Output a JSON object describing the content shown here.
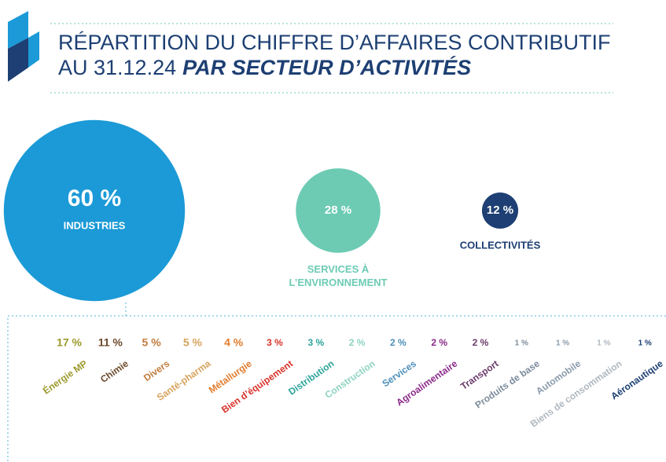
{
  "chart_data": [
    {
      "type": "bubble",
      "title": [
        "RÉPARTITION DU CHIFFRE D’AFFAIRES CONTRIBUTIF",
        "AU 31.12.24",
        "PAR SECTEUR D’ACTIVITÉS"
      ],
      "categories": [
        "INDUSTRIES",
        "SERVICES À L’ENVIRONNEMENT",
        "COLLECTIVITÉS"
      ],
      "values": [
        60,
        28,
        12
      ],
      "value_labels": [
        "60 %",
        "28 %",
        "12 %"
      ],
      "colors": [
        "#1b9ad7",
        "#6dcbb4",
        "#1d3f73"
      ]
    },
    {
      "type": "breakdown",
      "categories": [
        "Énergie MP",
        "Chimie",
        "Divers",
        "Santé-pharma",
        "Métallurgie",
        "Bien d’équipement",
        "Distribution",
        "Construction",
        "Services",
        "Agroalimentaire",
        "Transport",
        "Produits de base",
        "Automobile",
        "Biens de consommation",
        "Aéronautique"
      ],
      "values": [
        17,
        11,
        5,
        5,
        4,
        3,
        3,
        2,
        2,
        2,
        2,
        1,
        1,
        1,
        1
      ],
      "value_labels": [
        "17 %",
        "11 %",
        "5 %",
        "5 %",
        "4 %",
        "3 %",
        "3 %",
        "2 %",
        "2 %",
        "2 %",
        "2 %",
        "1 %",
        "1 %",
        "1 %",
        "1 %"
      ],
      "colors": [
        "#9c9a2c",
        "#6b4a2b",
        "#c27a3b",
        "#d6a35c",
        "#e27b2b",
        "#d9342b",
        "#2ba39a",
        "#8fd3c3",
        "#4c8fb8",
        "#8b2b8b",
        "#6b3b6b",
        "#7b8b9b",
        "#8b9bab",
        "#b0b8c0",
        "#1d3f73"
      ]
    }
  ]
}
